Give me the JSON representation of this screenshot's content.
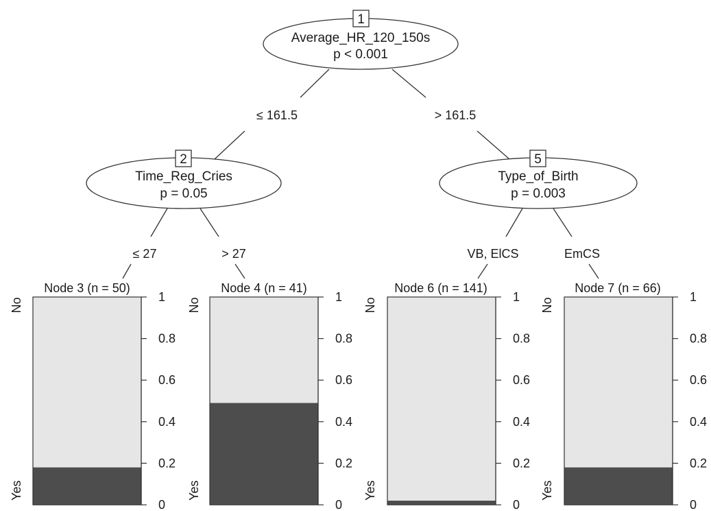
{
  "inner_nodes": [
    {
      "id": "1",
      "variable": "Average_HR_120_150s",
      "p_text": "p < 0.001"
    },
    {
      "id": "2",
      "variable": "Time_Reg_Cries",
      "p_text": "p = 0.05"
    },
    {
      "id": "5",
      "variable": "Type_of_Birth",
      "p_text": "p = 0.003"
    }
  ],
  "edges": [
    {
      "label": "≤ 161.5"
    },
    {
      "label": "> 161.5"
    },
    {
      "label": "≤ 27"
    },
    {
      "label": "> 27"
    },
    {
      "label": "VB, ElCS"
    },
    {
      "label": "EmCS"
    }
  ],
  "leaves": [
    {
      "title": "Node 3 (n = 50)",
      "yes_fraction": 0.18
    },
    {
      "title": "Node 4 (n = 41)",
      "yes_fraction": 0.49
    },
    {
      "title": "Node 6 (n = 141)",
      "yes_fraction": 0.02
    },
    {
      "title": "Node 7 (n = 66)",
      "yes_fraction": 0.18
    }
  ],
  "leaf_axis": {
    "top_label": "No",
    "bottom_label": "Yes",
    "ticks": [
      "0",
      "0.2",
      "0.4",
      "0.6",
      "0.8",
      "1"
    ]
  },
  "colors": {
    "no": "#e6e6e6",
    "yes": "#4d4d4d",
    "line": "#333333"
  }
}
